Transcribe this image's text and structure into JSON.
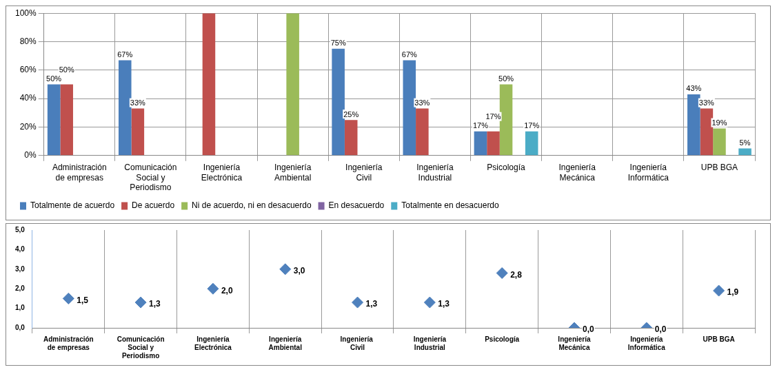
{
  "chart_data": [
    {
      "type": "bar",
      "categories": [
        "Administración de empresas",
        "Comunicación Social y Periodismo",
        "Ingeniería Electrónica",
        "Ingeniería Ambiental",
        "Ingeniería Civil",
        "Ingeniería Industrial",
        "Psicología",
        "Ingeniería Mecánica",
        "Ingeniería Informática",
        "UPB BGA"
      ],
      "series": [
        {
          "name": "Totalmente de acuerdo",
          "color": "#4a7ebb",
          "values": [
            50,
            67,
            null,
            null,
            75,
            67,
            17,
            null,
            null,
            43
          ],
          "value_labels": [
            "50%",
            "67%",
            null,
            null,
            "75%",
            "67%",
            "17%",
            null,
            null,
            "43%"
          ]
        },
        {
          "name": "De acuerdo",
          "color": "#c0504d",
          "values": [
            50,
            33,
            100,
            null,
            25,
            33,
            17,
            null,
            null,
            33
          ],
          "value_labels": [
            "50%",
            "33%",
            null,
            null,
            "25%",
            "33%",
            "17%",
            null,
            null,
            "33%"
          ]
        },
        {
          "name": "Ni de acuerdo, ni en desacuerdo",
          "color": "#9bbb59",
          "values": [
            null,
            null,
            null,
            100,
            null,
            null,
            50,
            null,
            null,
            19
          ],
          "value_labels": [
            null,
            null,
            null,
            null,
            null,
            null,
            "50%",
            null,
            null,
            "19%"
          ]
        },
        {
          "name": "En desacuerdo",
          "color": "#8064a2",
          "values": [
            null,
            null,
            null,
            null,
            null,
            null,
            null,
            null,
            null,
            null
          ]
        },
        {
          "name": "Totalmente en desacuerdo",
          "color": "#4bacc6",
          "values": [
            null,
            null,
            null,
            null,
            null,
            null,
            17,
            null,
            null,
            5
          ],
          "value_labels": [
            null,
            null,
            null,
            null,
            null,
            null,
            "17%",
            null,
            null,
            "5%"
          ]
        }
      ],
      "ylim": [
        0,
        100
      ],
      "yticks": [
        {
          "value": 0,
          "label": "0%"
        },
        {
          "value": 20,
          "label": "20%"
        },
        {
          "value": 40,
          "label": "40%"
        },
        {
          "value": 60,
          "label": "60%"
        },
        {
          "value": 80,
          "label": "80%"
        },
        {
          "value": 100,
          "label": "100%"
        }
      ],
      "grid": true,
      "legend": "bottom"
    },
    {
      "type": "scatter",
      "categories": [
        "Administración de empresas",
        "Comunicación Social y Periodismo",
        "Ingeniería Electrónica",
        "Ingeniería Ambiental",
        "Ingeniería  Civil",
        "Ingeniería Industrial",
        "Psicología",
        "Ingeniería Mecánica",
        "Ingeniería Informática",
        "UPB BGA"
      ],
      "series": [
        {
          "color": "#4f81bd",
          "values": [
            1.5,
            1.3,
            2.0,
            3.0,
            1.3,
            1.3,
            2.8,
            0.0,
            0.0,
            1.9
          ],
          "value_labels": [
            "1,5",
            "1,3",
            "2,0",
            "3,0",
            "1,3",
            "1,3",
            "2,8",
            "0,0",
            "0,0",
            "1,9"
          ]
        }
      ],
      "ylim": [
        0,
        5
      ],
      "yticks": [
        {
          "value": 0,
          "label": "0,0"
        },
        {
          "value": 1,
          "label": "1,0"
        },
        {
          "value": 2,
          "label": "2,0"
        },
        {
          "value": 3,
          "label": "3,0"
        },
        {
          "value": 4,
          "label": "4,0"
        },
        {
          "value": 5,
          "label": "5,0"
        }
      ],
      "grid": "x",
      "marker": "diamond"
    }
  ]
}
